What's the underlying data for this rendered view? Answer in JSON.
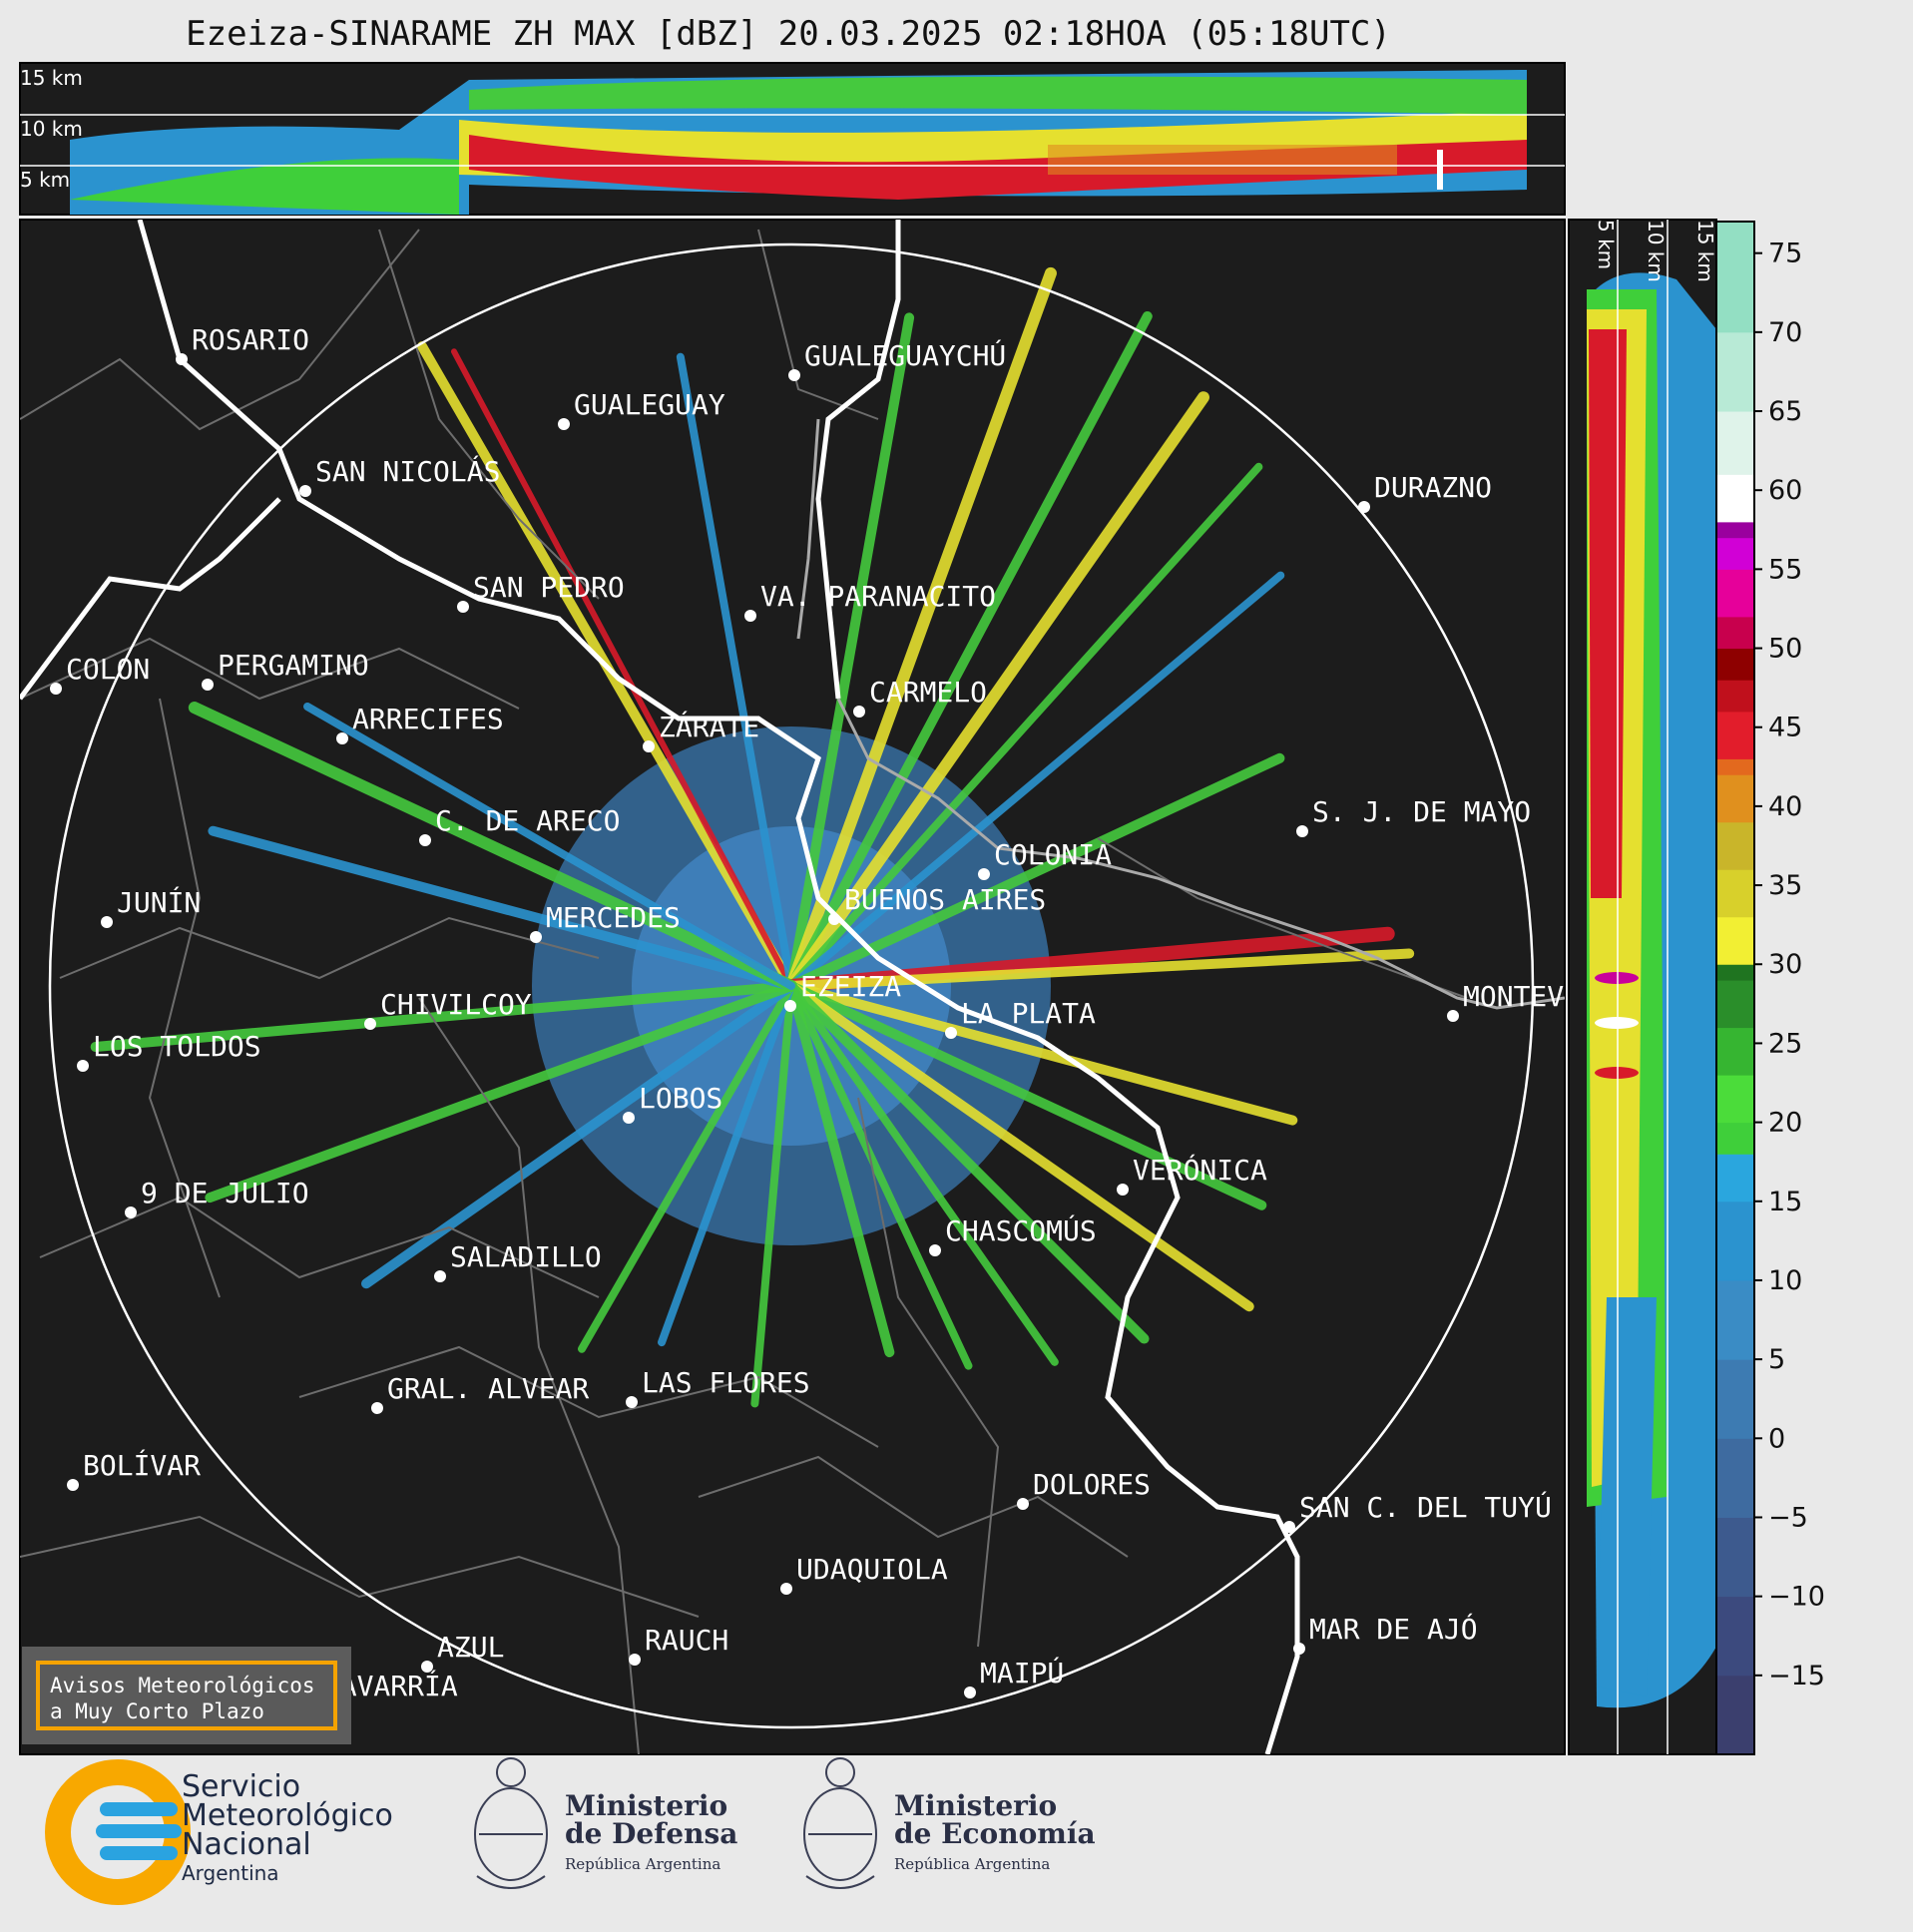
{
  "title": "Ezeiza-SINARAME ZH MAX [dBZ] 20.03.2025 02:18HOA (05:18UTC)",
  "top_panel": {
    "altitude_labels": [
      "15 km",
      "10 km",
      "5 km"
    ]
  },
  "side_panel": {
    "altitude_labels": [
      "5 km",
      "10 km",
      "15 km"
    ]
  },
  "colorbar": {
    "unit": "dBZ",
    "ticks": [
      "75",
      "70",
      "65",
      "60",
      "55",
      "50",
      "45",
      "40",
      "35",
      "30",
      "25",
      "20",
      "15",
      "10",
      "5",
      "0",
      "−5",
      "−10",
      "−15"
    ],
    "range": [
      -20,
      77
    ]
  },
  "cities": [
    {
      "name": "ROSARIO"
    },
    {
      "name": "GUALEGUAYCHÚ"
    },
    {
      "name": "GUALEGUAY"
    },
    {
      "name": "SAN NICOLÁS"
    },
    {
      "name": "DURAZNO"
    },
    {
      "name": "SAN PEDRO"
    },
    {
      "name": "VA. PARANACITO"
    },
    {
      "name": "COLON"
    },
    {
      "name": "PERGAMINO"
    },
    {
      "name": "CARMELO"
    },
    {
      "name": "ARRECIFES"
    },
    {
      "name": "ZÁRATE"
    },
    {
      "name": "S. J. DE MAYO"
    },
    {
      "name": "C. DE ARECO"
    },
    {
      "name": "COLONIA"
    },
    {
      "name": "JUNÍN"
    },
    {
      "name": "BUENOS AIRES"
    },
    {
      "name": "MERCEDES"
    },
    {
      "name": "MONTEVIDEO"
    },
    {
      "name": "EZEIZA"
    },
    {
      "name": "CHIVILCOY"
    },
    {
      "name": "LA PLATA"
    },
    {
      "name": "LOS TOLDOS"
    },
    {
      "name": "LOBOS"
    },
    {
      "name": "VERÓNICA"
    },
    {
      "name": "9 DE JULIO"
    },
    {
      "name": "CHASCOMÚS"
    },
    {
      "name": "SALADILLO"
    },
    {
      "name": "GRAL. ALVEAR"
    },
    {
      "name": "LAS FLORES"
    },
    {
      "name": "BOLÍVAR"
    },
    {
      "name": "DOLORES"
    },
    {
      "name": "SAN C. DEL TUYÚ"
    },
    {
      "name": "UDAQUIOLA"
    },
    {
      "name": "MAR DE AJÓ"
    },
    {
      "name": "AZUL"
    },
    {
      "name": "RAUCH"
    },
    {
      "name": "MAIPÚ"
    },
    {
      "name": "OLAVARRÍA"
    }
  ],
  "warning_box": {
    "line1": "Avisos Meteorológicos",
    "line2": "a Muy Corto Plazo"
  },
  "footer": {
    "smn": {
      "line1": "Servicio",
      "line2": "Meteorológico",
      "line3": "Nacional",
      "line4": "Argentina"
    },
    "defensa": {
      "line1": "Ministerio",
      "line2": "de Defensa",
      "line3": "República Argentina"
    },
    "economia": {
      "line1": "Ministerio",
      "line2": "de Economía",
      "line3": "República Argentina"
    }
  },
  "colors": {
    "background": "#e9e9e9",
    "map": "#1c1c1c",
    "warning_border": "#f5a300",
    "smn_orange": "#f8a800",
    "smn_blue": "#2aa3e0"
  }
}
